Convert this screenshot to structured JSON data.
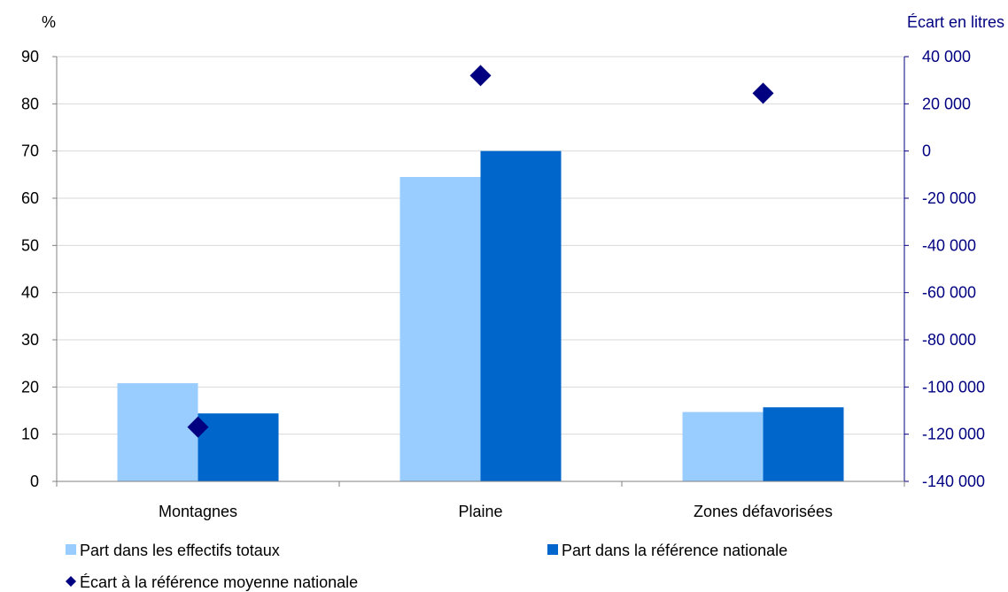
{
  "chart_data": {
    "type": "bar",
    "categories": [
      "Montagnes",
      "Plaine",
      "Zones défavorisées"
    ],
    "y_left": {
      "label": "%",
      "range": [
        0,
        90
      ],
      "ticks": [
        0,
        10,
        20,
        30,
        40,
        50,
        60,
        70,
        80,
        90
      ]
    },
    "y_right": {
      "label": "Écart en litres",
      "range": [
        -140000,
        40000
      ],
      "ticks": [
        -140000,
        -120000,
        -100000,
        -80000,
        -60000,
        -40000,
        -20000,
        0,
        20000,
        40000
      ]
    },
    "grid": true,
    "legend": "bottom",
    "series": [
      {
        "name": "Part dans les effectifs totaux",
        "type": "bar",
        "axis": "left",
        "color": "#99ccff",
        "values": [
          20.8,
          64.5,
          14.7
        ]
      },
      {
        "name": "Part dans la référence nationale",
        "type": "bar",
        "axis": "left",
        "color": "#0066cc",
        "values": [
          14.4,
          70.0,
          15.7
        ]
      },
      {
        "name": "Écart à la référence moyenne nationale",
        "type": "scatter",
        "marker": "diamond",
        "axis": "right",
        "color": "#000080",
        "values": [
          -117000,
          32000,
          24500
        ]
      }
    ]
  }
}
